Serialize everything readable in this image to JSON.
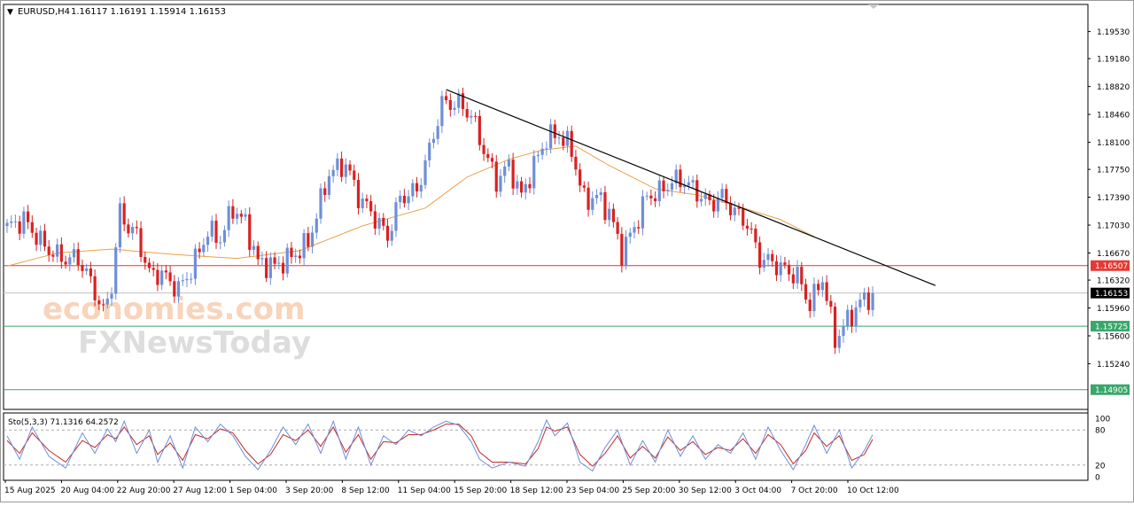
{
  "header": {
    "symbol": "EURUSD,H4",
    "ohlc": "1.16117 1.16191 1.15914 1.16153",
    "arrow": "▼"
  },
  "stochastic": {
    "label": "Sto(5,3,3) 71.1316 64.2572",
    "levels": [
      100,
      80,
      20,
      0
    ],
    "level_labels": [
      "100",
      "80",
      "20",
      "0"
    ]
  },
  "watermark": {
    "line1": "economies.com",
    "line2": "FXNewsToday"
  },
  "colors": {
    "bull": "#6f8fd6",
    "bear": "#d92121",
    "ma": "#e8a24a",
    "resistance": "#e53935",
    "support": "#3aa66b",
    "trendline": "#000000",
    "stoch_main": "#6f8fd6",
    "stoch_signal": "#c62828"
  },
  "chart_data": {
    "type": "candlestick",
    "symbol": "EURUSD",
    "timeframe": "H4",
    "ylim": [
      1.1465,
      1.1988
    ],
    "price_ticks": [
      "1.19530",
      "1.19180",
      "1.18820",
      "1.18460",
      "1.18100",
      "1.17750",
      "1.17390",
      "1.17030",
      "1.16670",
      "1.16320",
      "1.15960",
      "1.15600",
      "1.15240"
    ],
    "x_labels": [
      "15 Aug 2025",
      "20 Aug 04:00",
      "22 Aug 20:00",
      "27 Aug 12:00",
      "1 Sep 04:00",
      "3 Sep 20:00",
      "8 Sep 12:00",
      "11 Sep 04:00",
      "15 Sep 20:00",
      "18 Sep 12:00",
      "23 Sep 04:00",
      "25 Sep 20:00",
      "30 Sep 12:00",
      "3 Oct 04:00",
      "7 Oct 20:00",
      "10 Oct 12:00"
    ],
    "current_price": 1.16153,
    "current_price_label": "1.16153",
    "horizontal_lines": [
      {
        "price": 1.16507,
        "label": "1.16507",
        "color": "#e53935"
      },
      {
        "price": 1.15725,
        "label": "1.15725",
        "color": "#3aa66b"
      },
      {
        "price": 1.14905,
        "label": "1.14905",
        "color": "#3aa66b"
      }
    ],
    "trendline": {
      "from_bar": 105,
      "from_price": 1.1878,
      "to_bar": 222,
      "to_price": 1.1625
    },
    "close_path": [
      [
        0,
        1.17
      ],
      [
        4,
        1.171
      ],
      [
        9,
        1.1675
      ],
      [
        13,
        1.166
      ],
      [
        17,
        1.166
      ],
      [
        20,
        1.163
      ],
      [
        23,
        1.159
      ],
      [
        25,
        1.1625
      ],
      [
        27,
        1.172
      ],
      [
        29,
        1.17
      ],
      [
        31,
        1.169
      ],
      [
        34,
        1.164
      ],
      [
        37,
        1.164
      ],
      [
        41,
        1.162
      ],
      [
        44,
        1.1645
      ],
      [
        48,
        1.1695
      ],
      [
        51,
        1.1685
      ],
      [
        54,
        1.1725
      ],
      [
        57,
        1.1705
      ],
      [
        60,
        1.1655
      ],
      [
        64,
        1.165
      ],
      [
        68,
        1.1662
      ],
      [
        72,
        1.168
      ],
      [
        77,
        1.177
      ],
      [
        81,
        1.1782
      ],
      [
        84,
        1.174
      ],
      [
        87,
        1.172
      ],
      [
        91,
        1.1688
      ],
      [
        94,
        1.1738
      ],
      [
        98,
        1.1748
      ],
      [
        101,
        1.18
      ],
      [
        104,
        1.186
      ],
      [
        108,
        1.186
      ],
      [
        111,
        1.1845
      ],
      [
        114,
        1.18
      ],
      [
        117,
        1.176
      ],
      [
        120,
        1.178
      ],
      [
        123,
        1.174
      ],
      [
        126,
        1.178
      ],
      [
        129,
        1.1815
      ],
      [
        132,
        1.182
      ],
      [
        135,
        1.18
      ],
      [
        138,
        1.1735
      ],
      [
        141,
        1.174
      ],
      [
        144,
        1.172
      ],
      [
        147,
        1.1668
      ],
      [
        150,
        1.17
      ],
      [
        153,
        1.174
      ],
      [
        156,
        1.1745
      ],
      [
        159,
        1.176
      ],
      [
        162,
        1.176
      ],
      [
        165,
        1.1745
      ],
      [
        168,
        1.173
      ],
      [
        171,
        1.174
      ],
      [
        174,
        1.172
      ],
      [
        177,
        1.1705
      ],
      [
        180,
        1.166
      ],
      [
        183,
        1.1655
      ],
      [
        186,
        1.1645
      ],
      [
        189,
        1.1637
      ],
      [
        192,
        1.16
      ],
      [
        195,
        1.1635
      ],
      [
        198,
        1.1555
      ],
      [
        201,
        1.158
      ],
      [
        204,
        1.1603
      ],
      [
        207,
        1.1615
      ]
    ],
    "ma_path": [
      [
        0,
        1.165
      ],
      [
        12,
        1.1667
      ],
      [
        25,
        1.1672
      ],
      [
        40,
        1.1665
      ],
      [
        55,
        1.166
      ],
      [
        70,
        1.167
      ],
      [
        85,
        1.1702
      ],
      [
        100,
        1.1725
      ],
      [
        110,
        1.1765
      ],
      [
        120,
        1.1788
      ],
      [
        128,
        1.18
      ],
      [
        136,
        1.1805
      ],
      [
        144,
        1.178
      ],
      [
        155,
        1.175
      ],
      [
        165,
        1.1742
      ],
      [
        175,
        1.1727
      ],
      [
        185,
        1.171
      ],
      [
        193,
        1.1688
      ]
    ],
    "stoch_path": [
      [
        0,
        70
      ],
      [
        3,
        30
      ],
      [
        6,
        85
      ],
      [
        10,
        35
      ],
      [
        14,
        15
      ],
      [
        18,
        75
      ],
      [
        21,
        40
      ],
      [
        24,
        82
      ],
      [
        26,
        60
      ],
      [
        28,
        95
      ],
      [
        31,
        40
      ],
      [
        34,
        80
      ],
      [
        36,
        25
      ],
      [
        39,
        70
      ],
      [
        42,
        15
      ],
      [
        45,
        85
      ],
      [
        48,
        60
      ],
      [
        51,
        90
      ],
      [
        54,
        70
      ],
      [
        57,
        35
      ],
      [
        60,
        12
      ],
      [
        63,
        45
      ],
      [
        66,
        85
      ],
      [
        69,
        55
      ],
      [
        72,
        90
      ],
      [
        75,
        40
      ],
      [
        78,
        95
      ],
      [
        81,
        30
      ],
      [
        84,
        85
      ],
      [
        87,
        20
      ],
      [
        90,
        70
      ],
      [
        93,
        55
      ],
      [
        96,
        80
      ],
      [
        99,
        70
      ],
      [
        102,
        85
      ],
      [
        105,
        95
      ],
      [
        108,
        88
      ],
      [
        111,
        60
      ],
      [
        113,
        30
      ],
      [
        116,
        15
      ],
      [
        120,
        25
      ],
      [
        124,
        18
      ],
      [
        127,
        60
      ],
      [
        129,
        97
      ],
      [
        131,
        70
      ],
      [
        134,
        92
      ],
      [
        137,
        25
      ],
      [
        140,
        10
      ],
      [
        143,
        50
      ],
      [
        146,
        80
      ],
      [
        149,
        20
      ],
      [
        152,
        62
      ],
      [
        155,
        25
      ],
      [
        158,
        80
      ],
      [
        161,
        35
      ],
      [
        164,
        70
      ],
      [
        167,
        30
      ],
      [
        170,
        55
      ],
      [
        173,
        40
      ],
      [
        176,
        75
      ],
      [
        179,
        30
      ],
      [
        182,
        85
      ],
      [
        185,
        45
      ],
      [
        188,
        12
      ],
      [
        191,
        55
      ],
      [
        193,
        88
      ],
      [
        196,
        40
      ],
      [
        199,
        80
      ],
      [
        202,
        15
      ],
      [
        205,
        45
      ],
      [
        207,
        72
      ]
    ],
    "stoch_signal_path": [
      [
        0,
        62
      ],
      [
        3,
        40
      ],
      [
        6,
        75
      ],
      [
        10,
        45
      ],
      [
        14,
        25
      ],
      [
        18,
        62
      ],
      [
        21,
        50
      ],
      [
        24,
        72
      ],
      [
        26,
        65
      ],
      [
        28,
        85
      ],
      [
        31,
        55
      ],
      [
        34,
        70
      ],
      [
        36,
        38
      ],
      [
        39,
        58
      ],
      [
        42,
        28
      ],
      [
        45,
        72
      ],
      [
        48,
        65
      ],
      [
        51,
        82
      ],
      [
        54,
        75
      ],
      [
        57,
        45
      ],
      [
        60,
        22
      ],
      [
        63,
        38
      ],
      [
        66,
        72
      ],
      [
        69,
        62
      ],
      [
        72,
        80
      ],
      [
        75,
        52
      ],
      [
        78,
        85
      ],
      [
        81,
        42
      ],
      [
        84,
        72
      ],
      [
        87,
        30
      ],
      [
        90,
        60
      ],
      [
        93,
        58
      ],
      [
        96,
        72
      ],
      [
        99,
        72
      ],
      [
        102,
        80
      ],
      [
        105,
        90
      ],
      [
        108,
        90
      ],
      [
        111,
        70
      ],
      [
        113,
        42
      ],
      [
        116,
        25
      ],
      [
        120,
        25
      ],
      [
        124,
        22
      ],
      [
        127,
        48
      ],
      [
        129,
        85
      ],
      [
        131,
        78
      ],
      [
        134,
        85
      ],
      [
        137,
        38
      ],
      [
        140,
        18
      ],
      [
        143,
        40
      ],
      [
        146,
        70
      ],
      [
        149,
        32
      ],
      [
        152,
        52
      ],
      [
        155,
        32
      ],
      [
        158,
        68
      ],
      [
        161,
        45
      ],
      [
        164,
        60
      ],
      [
        167,
        38
      ],
      [
        170,
        50
      ],
      [
        173,
        45
      ],
      [
        176,
        65
      ],
      [
        179,
        40
      ],
      [
        182,
        72
      ],
      [
        185,
        55
      ],
      [
        188,
        22
      ],
      [
        191,
        45
      ],
      [
        193,
        75
      ],
      [
        196,
        52
      ],
      [
        199,
        70
      ],
      [
        202,
        28
      ],
      [
        205,
        38
      ],
      [
        207,
        64
      ]
    ]
  }
}
